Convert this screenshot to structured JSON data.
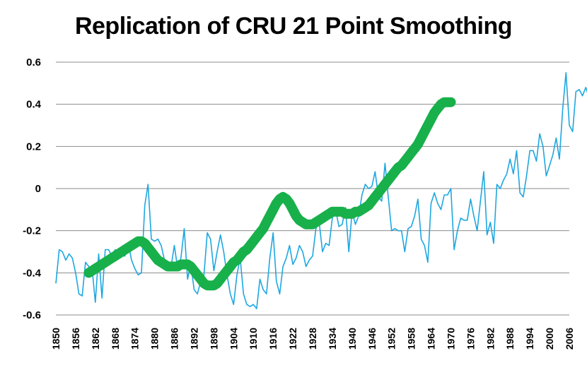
{
  "chart_data": {
    "type": "line",
    "title": "Replication of CRU 21 Point Smoothing",
    "xlabel": "",
    "ylabel": "",
    "xlim": [
      1850,
      2006
    ],
    "ylim": [
      -0.6,
      0.6
    ],
    "grid": true,
    "legend": "none",
    "y_ticks": [
      "0.6",
      "0.4",
      "0.2",
      "0",
      "-0.2",
      "-0.4",
      "-0.6"
    ],
    "x_ticks": [
      "1850",
      "1856",
      "1862",
      "1868",
      "1874",
      "1880",
      "1886",
      "1892",
      "1898",
      "1904",
      "1910",
      "1916",
      "1922",
      "1928",
      "1934",
      "1940",
      "1946",
      "1952",
      "1958",
      "1964",
      "1970",
      "1976",
      "1982",
      "1988",
      "1994",
      "2000",
      "2006"
    ],
    "colors": {
      "annual": "#1ea7e0",
      "smoothed": "#18b04a",
      "grid": "#8c8c8c"
    },
    "series": [
      {
        "key": "annual",
        "x_start": 1850,
        "values": [
          -0.45,
          -0.29,
          -0.3,
          -0.34,
          -0.31,
          -0.33,
          -0.4,
          -0.5,
          -0.51,
          -0.35,
          -0.37,
          -0.38,
          -0.54,
          -0.31,
          -0.52,
          -0.29,
          -0.29,
          -0.32,
          -0.29,
          -0.31,
          -0.32,
          -0.32,
          -0.26,
          -0.34,
          -0.38,
          -0.41,
          -0.4,
          -0.08,
          0.02,
          -0.24,
          -0.25,
          -0.24,
          -0.27,
          -0.34,
          -0.38,
          -0.37,
          -0.27,
          -0.38,
          -0.33,
          -0.19,
          -0.43,
          -0.36,
          -0.48,
          -0.5,
          -0.44,
          -0.41,
          -0.21,
          -0.24,
          -0.39,
          -0.3,
          -0.22,
          -0.3,
          -0.41,
          -0.5,
          -0.55,
          -0.41,
          -0.33,
          -0.5,
          -0.55,
          -0.56,
          -0.55,
          -0.57,
          -0.43,
          -0.48,
          -0.5,
          -0.33,
          -0.21,
          -0.44,
          -0.5,
          -0.37,
          -0.33,
          -0.27,
          -0.36,
          -0.33,
          -0.27,
          -0.3,
          -0.37,
          -0.34,
          -0.32,
          -0.19,
          -0.16,
          -0.3,
          -0.26,
          -0.27,
          -0.14,
          -0.1,
          -0.18,
          -0.17,
          -0.09,
          -0.3,
          -0.11,
          -0.17,
          -0.13,
          -0.03,
          0.02,
          0.0,
          0.01,
          0.08,
          -0.04,
          -0.06,
          0.12,
          -0.04,
          -0.2,
          -0.19,
          -0.2,
          -0.2,
          -0.3,
          -0.19,
          -0.18,
          -0.13,
          -0.05,
          -0.24,
          -0.27,
          -0.35,
          -0.07,
          -0.02,
          -0.07,
          -0.1,
          -0.03,
          -0.03,
          0.0,
          -0.29,
          -0.2,
          -0.14,
          -0.15,
          -0.15,
          -0.05,
          -0.13,
          -0.2,
          -0.06,
          0.08,
          -0.22,
          -0.16,
          -0.26,
          0.02,
          0.0,
          0.04,
          0.07,
          0.14,
          0.07,
          0.18,
          -0.02,
          -0.04,
          0.06,
          0.18,
          0.18,
          0.13,
          0.26,
          0.2,
          0.06,
          0.11,
          0.16,
          0.24,
          0.14,
          0.38,
          0.55,
          0.3,
          0.27,
          0.46,
          0.47,
          0.44,
          0.48,
          0.43
        ]
      },
      {
        "key": "smoothed",
        "x_start": 1860,
        "values": [
          -0.4,
          -0.39,
          -0.38,
          -0.37,
          -0.36,
          -0.35,
          -0.34,
          -0.33,
          -0.32,
          -0.31,
          -0.3,
          -0.29,
          -0.28,
          -0.27,
          -0.26,
          -0.25,
          -0.25,
          -0.26,
          -0.28,
          -0.3,
          -0.32,
          -0.34,
          -0.35,
          -0.36,
          -0.37,
          -0.37,
          -0.37,
          -0.37,
          -0.36,
          -0.36,
          -0.36,
          -0.37,
          -0.39,
          -0.41,
          -0.43,
          -0.45,
          -0.46,
          -0.46,
          -0.46,
          -0.45,
          -0.43,
          -0.41,
          -0.39,
          -0.37,
          -0.35,
          -0.34,
          -0.32,
          -0.3,
          -0.29,
          -0.27,
          -0.25,
          -0.23,
          -0.21,
          -0.19,
          -0.16,
          -0.13,
          -0.1,
          -0.07,
          -0.05,
          -0.04,
          -0.05,
          -0.07,
          -0.1,
          -0.13,
          -0.15,
          -0.16,
          -0.17,
          -0.17,
          -0.17,
          -0.16,
          -0.15,
          -0.14,
          -0.13,
          -0.12,
          -0.11,
          -0.11,
          -0.11,
          -0.11,
          -0.12,
          -0.12,
          -0.12,
          -0.11,
          -0.11,
          -0.1,
          -0.09,
          -0.08,
          -0.06,
          -0.04,
          -0.02,
          0.0,
          0.02,
          0.04,
          0.06,
          0.08,
          0.1,
          0.11,
          0.13,
          0.15,
          0.17,
          0.19,
          0.21,
          0.24,
          0.27,
          0.3,
          0.33,
          0.36,
          0.38,
          0.4,
          0.41,
          0.41,
          0.41
        ]
      }
    ]
  }
}
